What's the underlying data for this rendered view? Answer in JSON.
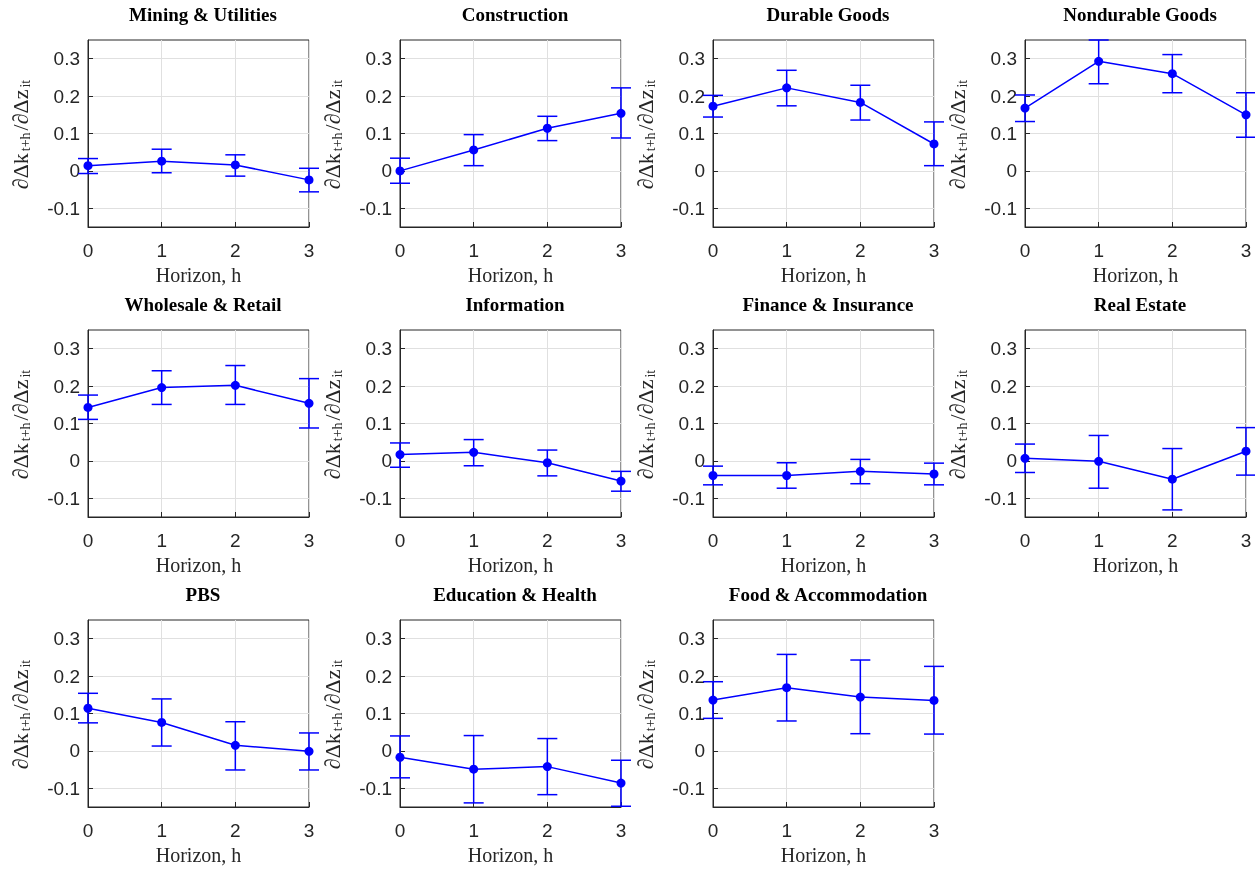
{
  "chart_data": [
    {
      "type": "line",
      "title": "Mining & Utilities",
      "xlabel": "Horizon, h",
      "ylabel": "∂Δk$_{t+h}$/∂Δz$_{it}$",
      "x": [
        0,
        1,
        2,
        3
      ],
      "xlim": [
        0,
        3
      ],
      "xticks": [
        0,
        1,
        2,
        3
      ],
      "ylim": [
        -0.15,
        0.35
      ],
      "yticks": [
        -0.1,
        0,
        0.1,
        0.2,
        0.3
      ],
      "grid": true,
      "marker": "circle",
      "series": [
        {
          "color": "#0000ff",
          "values": [
            0.014,
            0.026,
            0.016,
            -0.024
          ],
          "errors": [
            [
              -0.007,
              0.033
            ],
            [
              -0.005,
              0.058
            ],
            [
              -0.014,
              0.043
            ],
            [
              -0.056,
              0.007
            ]
          ]
        }
      ]
    },
    {
      "type": "line",
      "title": "Construction",
      "xlabel": "Horizon, h",
      "ylabel": "∂Δk$_{t+h}$/∂Δz$_{it}$",
      "x": [
        0,
        1,
        2,
        3
      ],
      "xlim": [
        0,
        3
      ],
      "xticks": [
        0,
        1,
        2,
        3
      ],
      "ylim": [
        -0.15,
        0.35
      ],
      "yticks": [
        -0.1,
        0,
        0.1,
        0.2,
        0.3
      ],
      "grid": true,
      "marker": "circle",
      "series": [
        {
          "color": "#0000ff",
          "values": [
            0.0,
            0.056,
            0.114,
            0.154
          ],
          "errors": [
            [
              -0.033,
              0.034
            ],
            [
              0.014,
              0.097
            ],
            [
              0.081,
              0.146
            ],
            [
              0.088,
              0.222
            ]
          ]
        }
      ]
    },
    {
      "type": "line",
      "title": "Durable Goods",
      "xlabel": "Horizon, h",
      "ylabel": "∂Δk$_{t+h}$/∂Δz$_{it}$",
      "x": [
        0,
        1,
        2,
        3
      ],
      "xlim": [
        0,
        3
      ],
      "xticks": [
        0,
        1,
        2,
        3
      ],
      "ylim": [
        -0.15,
        0.35
      ],
      "yticks": [
        -0.1,
        0,
        0.1,
        0.2,
        0.3
      ],
      "grid": true,
      "marker": "circle",
      "series": [
        {
          "color": "#0000ff",
          "values": [
            0.173,
            0.222,
            0.183,
            0.072
          ],
          "errors": [
            [
              0.144,
              0.202
            ],
            [
              0.174,
              0.269
            ],
            [
              0.136,
              0.229
            ],
            [
              0.014,
              0.131
            ]
          ]
        }
      ]
    },
    {
      "type": "line",
      "title": "Nondurable Goods",
      "xlabel": "Horizon, h",
      "ylabel": "∂Δk$_{t+h}$/∂Δz$_{it}$",
      "x": [
        0,
        1,
        2,
        3
      ],
      "xlim": [
        0,
        3
      ],
      "xticks": [
        0,
        1,
        2,
        3
      ],
      "ylim": [
        -0.15,
        0.35
      ],
      "yticks": [
        -0.1,
        0,
        0.1,
        0.2,
        0.3
      ],
      "grid": true,
      "marker": "circle",
      "series": [
        {
          "color": "#0000ff",
          "values": [
            0.168,
            0.293,
            0.26,
            0.15
          ],
          "errors": [
            [
              0.132,
              0.203
            ],
            [
              0.233,
              0.35
            ],
            [
              0.209,
              0.311
            ],
            [
              0.09,
              0.209
            ]
          ]
        }
      ]
    },
    {
      "type": "line",
      "title": "Wholesale & Retail",
      "xlabel": "Horizon, h",
      "ylabel": "∂Δk$_{t+h}$/∂Δz$_{it}$",
      "x": [
        0,
        1,
        2,
        3
      ],
      "xlim": [
        0,
        3
      ],
      "xticks": [
        0,
        1,
        2,
        3
      ],
      "ylim": [
        -0.15,
        0.35
      ],
      "yticks": [
        -0.1,
        0,
        0.1,
        0.2,
        0.3
      ],
      "grid": true,
      "marker": "circle",
      "series": [
        {
          "color": "#0000ff",
          "values": [
            0.143,
            0.196,
            0.202,
            0.154
          ],
          "errors": [
            [
              0.111,
              0.176
            ],
            [
              0.151,
              0.241
            ],
            [
              0.151,
              0.255
            ],
            [
              0.088,
              0.22
            ]
          ]
        }
      ]
    },
    {
      "type": "line",
      "title": "Information",
      "xlabel": "Horizon, h",
      "ylabel": "∂Δk$_{t+h}$/∂Δz$_{it}$",
      "x": [
        0,
        1,
        2,
        3
      ],
      "xlim": [
        0,
        3
      ],
      "xticks": [
        0,
        1,
        2,
        3
      ],
      "ylim": [
        -0.15,
        0.35
      ],
      "yticks": [
        -0.1,
        0,
        0.1,
        0.2,
        0.3
      ],
      "grid": true,
      "marker": "circle",
      "series": [
        {
          "color": "#0000ff",
          "values": [
            0.017,
            0.023,
            -0.005,
            -0.054
          ],
          "errors": [
            [
              -0.017,
              0.048
            ],
            [
              -0.013,
              0.057
            ],
            [
              -0.04,
              0.029
            ],
            [
              -0.081,
              -0.028
            ]
          ]
        }
      ]
    },
    {
      "type": "line",
      "title": "Finance & Insurance",
      "xlabel": "Horizon, h",
      "ylabel": "∂Δk$_{t+h}$/∂Δz$_{it}$",
      "x": [
        0,
        1,
        2,
        3
      ],
      "xlim": [
        0,
        3
      ],
      "xticks": [
        0,
        1,
        2,
        3
      ],
      "ylim": [
        -0.15,
        0.35
      ],
      "yticks": [
        -0.1,
        0,
        0.1,
        0.2,
        0.3
      ],
      "grid": true,
      "marker": "circle",
      "series": [
        {
          "color": "#0000ff",
          "values": [
            -0.039,
            -0.039,
            -0.028,
            -0.035
          ],
          "errors": [
            [
              -0.064,
              -0.014
            ],
            [
              -0.073,
              -0.005
            ],
            [
              -0.061,
              0.004
            ],
            [
              -0.064,
              -0.006
            ]
          ]
        }
      ]
    },
    {
      "type": "line",
      "title": "Real Estate",
      "xlabel": "Horizon, h",
      "ylabel": "∂Δk$_{t+h}$/∂Δz$_{it}$",
      "x": [
        0,
        1,
        2,
        3
      ],
      "xlim": [
        0,
        3
      ],
      "xticks": [
        0,
        1,
        2,
        3
      ],
      "ylim": [
        -0.15,
        0.35
      ],
      "yticks": [
        -0.1,
        0,
        0.1,
        0.2,
        0.3
      ],
      "grid": true,
      "marker": "circle",
      "series": [
        {
          "color": "#0000ff",
          "values": [
            0.007,
            -0.001,
            -0.049,
            0.026
          ],
          "errors": [
            [
              -0.031,
              0.045
            ],
            [
              -0.073,
              0.068
            ],
            [
              -0.131,
              0.033
            ],
            [
              -0.038,
              0.089
            ]
          ]
        }
      ]
    },
    {
      "type": "line",
      "title": "PBS",
      "xlabel": "Horizon, h",
      "ylabel": "∂Δk$_{t+h}$/∂Δz$_{it}$",
      "x": [
        0,
        1,
        2,
        3
      ],
      "xlim": [
        0,
        3
      ],
      "xticks": [
        0,
        1,
        2,
        3
      ],
      "ylim": [
        -0.15,
        0.35
      ],
      "yticks": [
        -0.1,
        0,
        0.1,
        0.2,
        0.3
      ],
      "grid": true,
      "marker": "circle",
      "series": [
        {
          "color": "#0000ff",
          "values": [
            0.114,
            0.076,
            0.015,
            -0.001
          ],
          "errors": [
            [
              0.075,
              0.154
            ],
            [
              0.013,
              0.139
            ],
            [
              -0.051,
              0.078
            ],
            [
              -0.051,
              0.048
            ]
          ]
        }
      ]
    },
    {
      "type": "line",
      "title": "Education & Health",
      "xlabel": "Horizon, h",
      "ylabel": "∂Δk$_{t+h}$/∂Δz$_{it}$",
      "x": [
        0,
        1,
        2,
        3
      ],
      "xlim": [
        0,
        3
      ],
      "xticks": [
        0,
        1,
        2,
        3
      ],
      "ylim": [
        -0.15,
        0.35
      ],
      "yticks": [
        -0.1,
        0,
        0.1,
        0.2,
        0.3
      ],
      "grid": true,
      "marker": "circle",
      "series": [
        {
          "color": "#0000ff",
          "values": [
            -0.017,
            -0.049,
            -0.042,
            -0.086
          ],
          "errors": [
            [
              -0.072,
              0.04
            ],
            [
              -0.139,
              0.041
            ],
            [
              -0.117,
              0.033
            ],
            [
              -0.148,
              -0.025
            ]
          ]
        }
      ]
    },
    {
      "type": "line",
      "title": "Food & Accommodation",
      "xlabel": "Horizon, h",
      "ylabel": "∂Δk$_{t+h}$/∂Δz$_{it}$",
      "x": [
        0,
        1,
        2,
        3
      ],
      "xlim": [
        0,
        3
      ],
      "xticks": [
        0,
        1,
        2,
        3
      ],
      "ylim": [
        -0.15,
        0.35
      ],
      "yticks": [
        -0.1,
        0,
        0.1,
        0.2,
        0.3
      ],
      "grid": true,
      "marker": "circle",
      "series": [
        {
          "color": "#0000ff",
          "values": [
            0.136,
            0.169,
            0.144,
            0.135
          ],
          "errors": [
            [
              0.087,
              0.185
            ],
            [
              0.08,
              0.258
            ],
            [
              0.046,
              0.243
            ],
            [
              0.045,
              0.226
            ]
          ]
        }
      ]
    }
  ]
}
